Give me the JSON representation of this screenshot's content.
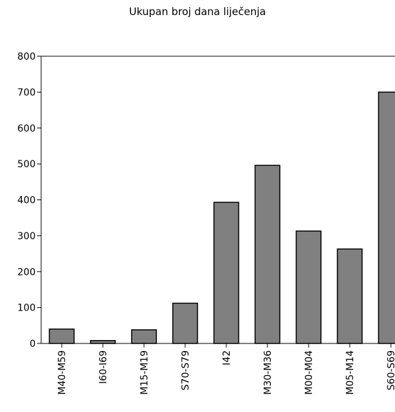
{
  "chart_data": {
    "type": "bar",
    "title": "Ukupan broj dana liječenja",
    "xlabel": "",
    "ylabel": "",
    "categories": [
      "M40-M59",
      "I60-I69",
      "M15-M19",
      "S70-S79",
      "I42",
      "M30-M36",
      "M00-M04",
      "M05-M14",
      "S60-S69"
    ],
    "values": [
      40,
      8,
      38,
      112,
      393,
      496,
      313,
      263,
      700
    ],
    "ylim": [
      0,
      800
    ],
    "yticks": [
      0,
      100,
      200,
      300,
      400,
      500,
      600,
      700,
      800
    ],
    "grid": false,
    "legend": "none",
    "bar_color": "#808080",
    "bar_edge_color": "#000000"
  }
}
